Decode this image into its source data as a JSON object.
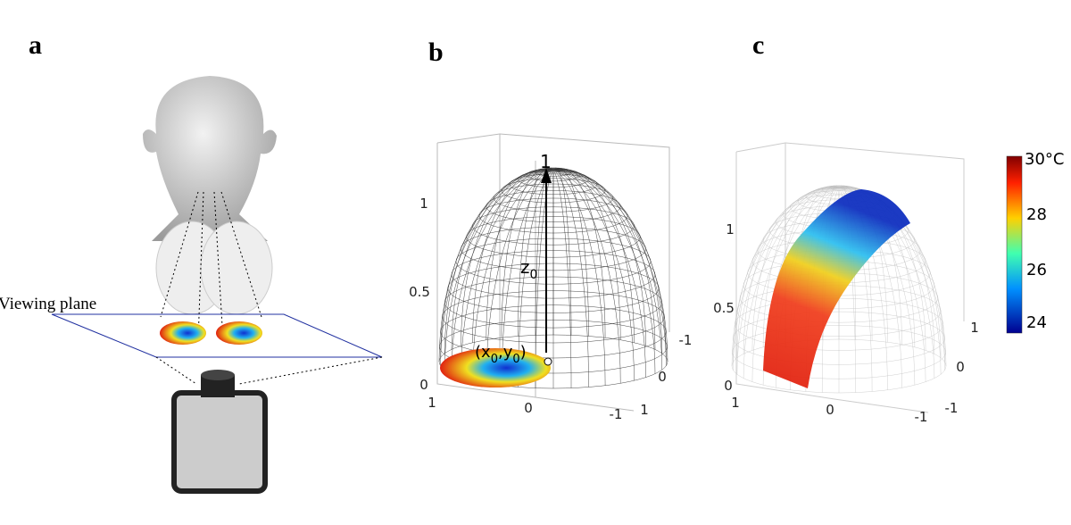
{
  "panel_a": {
    "label": "a",
    "viewing_plane": "Viewing plane"
  },
  "panel_b": {
    "label": "b",
    "apex": "1",
    "z_label": "z",
    "z_sub": "0",
    "point": [
      "(x",
      "0",
      ",y",
      "0",
      ")"
    ],
    "z_ticks": [
      "0",
      "0.5",
      "1"
    ],
    "x_ticks": [
      "1",
      "0",
      "-1"
    ],
    "y_ticks": [
      "-1",
      "0",
      "1"
    ]
  },
  "panel_c": {
    "label": "c",
    "z_ticks": [
      "0",
      "0.5",
      "1"
    ],
    "x_ticks": [
      "1",
      "0",
      "-1"
    ],
    "y_ticks": [
      "1",
      "0",
      "-1"
    ]
  },
  "colorbar": {
    "ticks": [
      "30°C",
      "28",
      "26",
      "24"
    ]
  }
}
